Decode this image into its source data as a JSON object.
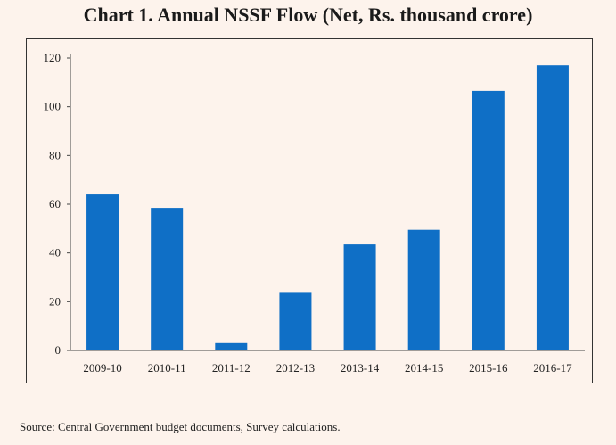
{
  "chart_data": {
    "type": "bar",
    "title": "Chart 1. Annual NSSF Flow (Net, Rs. thousand crore)",
    "xlabel": "",
    "ylabel": "",
    "categories": [
      "2009-10",
      "2010-11",
      "2011-12",
      "2012-13",
      "2013-14",
      "2014-15",
      "2015-16",
      "2016-17"
    ],
    "values": [
      64,
      58.5,
      3,
      24,
      43.5,
      49.5,
      106.5,
      117
    ],
    "ylim": [
      0,
      120
    ],
    "yticks": [
      0,
      20,
      40,
      60,
      80,
      100,
      120
    ],
    "grid": false,
    "legend": "none",
    "bar_color": "#0f6fc6"
  },
  "source": "Source: Central Government budget documents, Survey calculations."
}
